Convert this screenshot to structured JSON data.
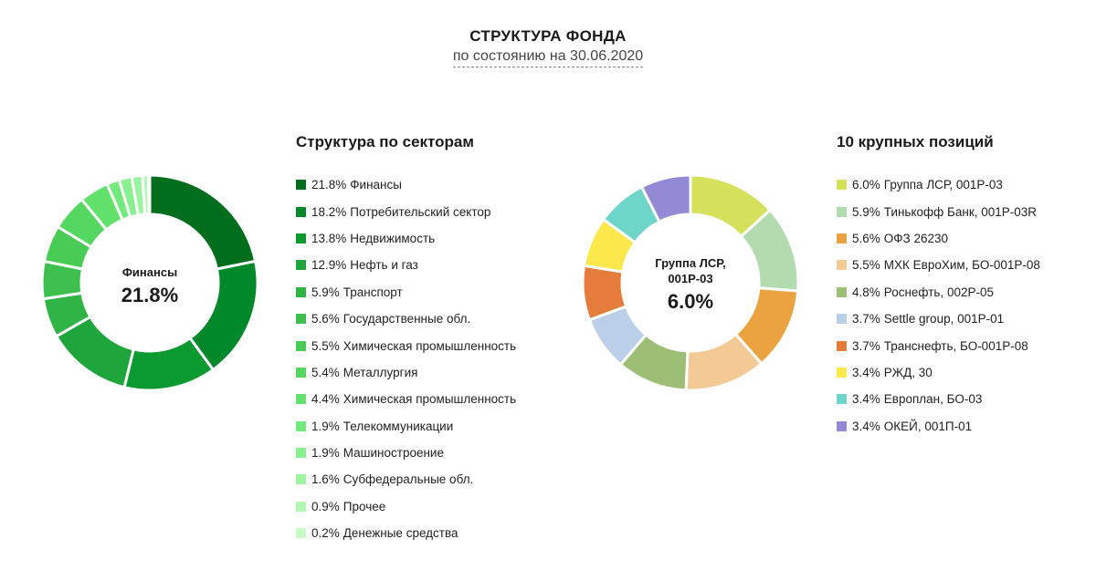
{
  "header": {
    "title": "СТРУКТУРА ФОНДА",
    "subtitle": "по состоянию на 30.06.2020"
  },
  "chart_data": [
    {
      "type": "pie",
      "title": "Структура по секторам",
      "donut": true,
      "center": {
        "name": "Финансы",
        "value": "21.8%"
      },
      "legend_position": "right",
      "slices": [
        {
          "label": "Финансы",
          "display": "21.8%",
          "value": 21.8,
          "color": "#006e1c"
        },
        {
          "label": "Потребительский сектор",
          "display": "18.2%",
          "value": 18.2,
          "color": "#00882a"
        },
        {
          "label": "Недвижимость",
          "display": "13.8%",
          "value": 13.8,
          "color": "#0a9a30"
        },
        {
          "label": "Нефть и газ",
          "display": "12.9%",
          "value": 12.9,
          "color": "#1ea63c"
        },
        {
          "label": "Транспорт",
          "display": "5.9%",
          "value": 5.9,
          "color": "#30b445"
        },
        {
          "label": "Государственные обл.",
          "display": "5.6%",
          "value": 5.6,
          "color": "#3ec04e"
        },
        {
          "label": "Химическая промышленность",
          "display": "5.5%",
          "value": 5.5,
          "color": "#48cc56"
        },
        {
          "label": "Металлургия",
          "display": "5.4%",
          "value": 5.4,
          "color": "#55d862"
        },
        {
          "label": "Химическая промышленность",
          "display": "4.4%",
          "value": 4.4,
          "color": "#62e26c"
        },
        {
          "label": "Телекоммуникации",
          "display": "1.9%",
          "value": 1.9,
          "color": "#74ea7c"
        },
        {
          "label": "Машиностроение",
          "display": "1.9%",
          "value": 1.9,
          "color": "#88f08e"
        },
        {
          "label": "Субфедеральные обл.",
          "display": "1.6%",
          "value": 1.6,
          "color": "#9cf4a0"
        },
        {
          "label": "Прочее",
          "display": "0.9%",
          "value": 0.9,
          "color": "#b2f7b4"
        },
        {
          "label": "Денежные средства",
          "display": "0.2%",
          "value": 0.2,
          "color": "#c8fac8"
        }
      ]
    },
    {
      "type": "pie",
      "title": "10 крупных позиций",
      "donut": true,
      "center": {
        "name": "Группа ЛСР, 001Р-03",
        "value": "6.0%"
      },
      "legend_position": "right",
      "slices": [
        {
          "label": "Группа ЛСР, 001Р-03",
          "display": "6.0%",
          "value": 6.0,
          "color": "#d5e05b"
        },
        {
          "label": "Тинькофф Банк, 001Р-03R",
          "display": "5.9%",
          "value": 5.9,
          "color": "#b2dbb0"
        },
        {
          "label": "ОФЗ 26230",
          "display": "5.6%",
          "value": 5.6,
          "color": "#eba33f"
        },
        {
          "label": "МХК ЕвроХим, БО-001Р-08",
          "display": "5.5%",
          "value": 5.5,
          "color": "#f3c995"
        },
        {
          "label": "Роснефть, 002Р-05",
          "display": "4.8%",
          "value": 4.8,
          "color": "#9dbf75"
        },
        {
          "label": "Settle group, 001Р-01",
          "display": "3.7%",
          "value": 3.7,
          "color": "#bccfe9"
        },
        {
          "label": "Транснефть, БО-001Р-08",
          "display": "3.7%",
          "value": 3.7,
          "color": "#e57c3c"
        },
        {
          "label": "РЖД, 30",
          "display": "3.4%",
          "value": 3.4,
          "color": "#fbe84a"
        },
        {
          "label": "Европлан, БО-03",
          "display": "3.4%",
          "value": 3.4,
          "color": "#6dd6c9"
        },
        {
          "label": "ОКЕЙ, 001П-01",
          "display": "3.4%",
          "value": 3.4,
          "color": "#938ad6"
        }
      ]
    }
  ]
}
